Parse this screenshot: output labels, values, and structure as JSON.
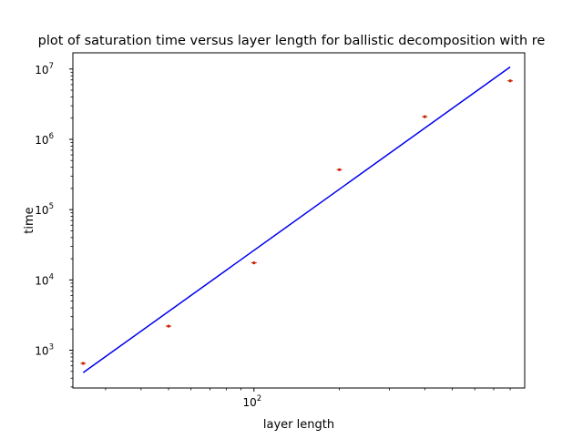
{
  "chart_data": {
    "type": "scatter",
    "title": "plot of saturation time versus layer length for ballistic decomposition with re",
    "xlabel": "layer length",
    "ylabel": "time",
    "xscale": "log",
    "yscale": "log",
    "xlim": [
      23,
      900
    ],
    "ylim": [
      290,
      17000000
    ],
    "grid": false,
    "x_ticks": [
      {
        "value": 100,
        "base": "10",
        "exp": "2"
      }
    ],
    "y_ticks": [
      {
        "value": 1000,
        "base": "10",
        "exp": "3"
      },
      {
        "value": 10000,
        "base": "10",
        "exp": "4"
      },
      {
        "value": 100000,
        "base": "10",
        "exp": "5"
      },
      {
        "value": 1000000,
        "base": "10",
        "exp": "6"
      },
      {
        "value": 10000000,
        "base": "10",
        "exp": "7"
      }
    ],
    "series": [
      {
        "kind": "scatter",
        "color": "#cc2200",
        "x": [
          25,
          50,
          100,
          200,
          400,
          800
        ],
        "y": [
          650,
          2200,
          17500,
          370000,
          2100000,
          6800000
        ]
      },
      {
        "kind": "line",
        "color": "#0000ee",
        "x": [
          25,
          800
        ],
        "y": [
          480,
          10700000
        ]
      }
    ]
  }
}
